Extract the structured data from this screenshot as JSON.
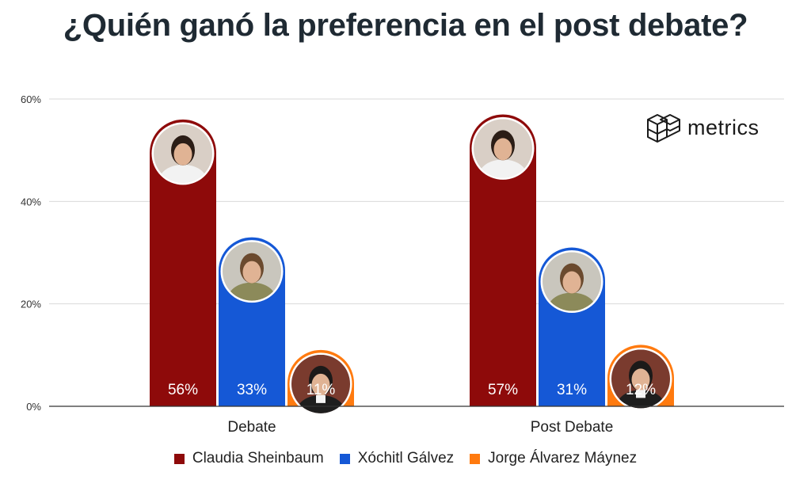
{
  "title": "¿Quién ganó la preferencia en el post debate?",
  "logo": {
    "text": "metrics",
    "icon": "cube-grid-icon"
  },
  "colors": {
    "claudia": "#8e0a0a",
    "xochitl": "#1558d6",
    "jorge": "#ff7a0f",
    "grid": "#d9d9d9",
    "axis": "#333333"
  },
  "chart_data": {
    "type": "bar",
    "title": "¿Quién ganó la preferencia en el post debate?",
    "categories": [
      "Debate",
      "Post Debate"
    ],
    "series": [
      {
        "name": "Claudia Sheinbaum",
        "values": [
          56,
          57
        ],
        "labels": [
          "56%",
          "57%"
        ],
        "color": "#8e0a0a",
        "icon": "claudia-photo"
      },
      {
        "name": "Xóchitl Gálvez",
        "values": [
          33,
          31
        ],
        "labels": [
          "33%",
          "31%"
        ],
        "color": "#1558d6",
        "icon": "xochitl-photo"
      },
      {
        "name": "Jorge Álvarez Máynez",
        "values": [
          11,
          12
        ],
        "labels": [
          "11%",
          "12%"
        ],
        "color": "#ff7a0f",
        "icon": "jorge-photo"
      }
    ],
    "ylim": [
      0,
      60
    ],
    "yticks": [
      0,
      20,
      40,
      60
    ],
    "ytick_labels": [
      "0%",
      "20%",
      "40%",
      "60%"
    ],
    "grid": true,
    "legend_position": "bottom"
  }
}
